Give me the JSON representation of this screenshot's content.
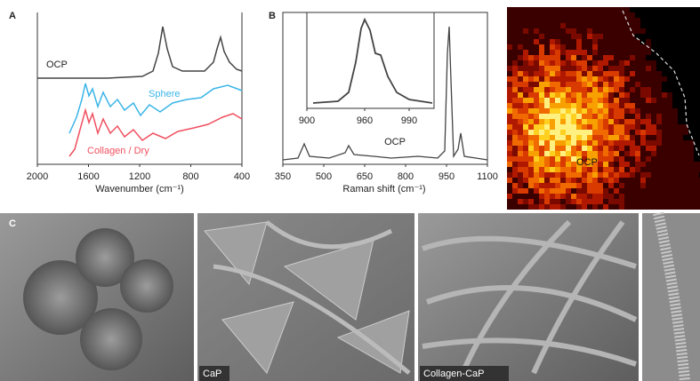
{
  "panel_a": {
    "label": "A",
    "series_labels": [
      "OCP",
      "Sphere",
      "Collagen / Dry"
    ],
    "x_ticks": [
      2000,
      1600,
      1200,
      800,
      400
    ],
    "x_axis_label": "Wavenumber (cm⁻¹)"
  },
  "panel_b": {
    "label": "B",
    "inset_ticks": [
      900,
      960,
      990
    ],
    "x_ticks": [
      350,
      500,
      650,
      800,
      950,
      1100
    ],
    "x_axis_label": "Raman shift (cm⁻¹)",
    "annotation": "OCP"
  },
  "map": {
    "annotation": "OCP"
  },
  "panel_c": {
    "label": "C",
    "image_labels": [
      "CaP",
      "Collagen-CaP"
    ]
  }
}
